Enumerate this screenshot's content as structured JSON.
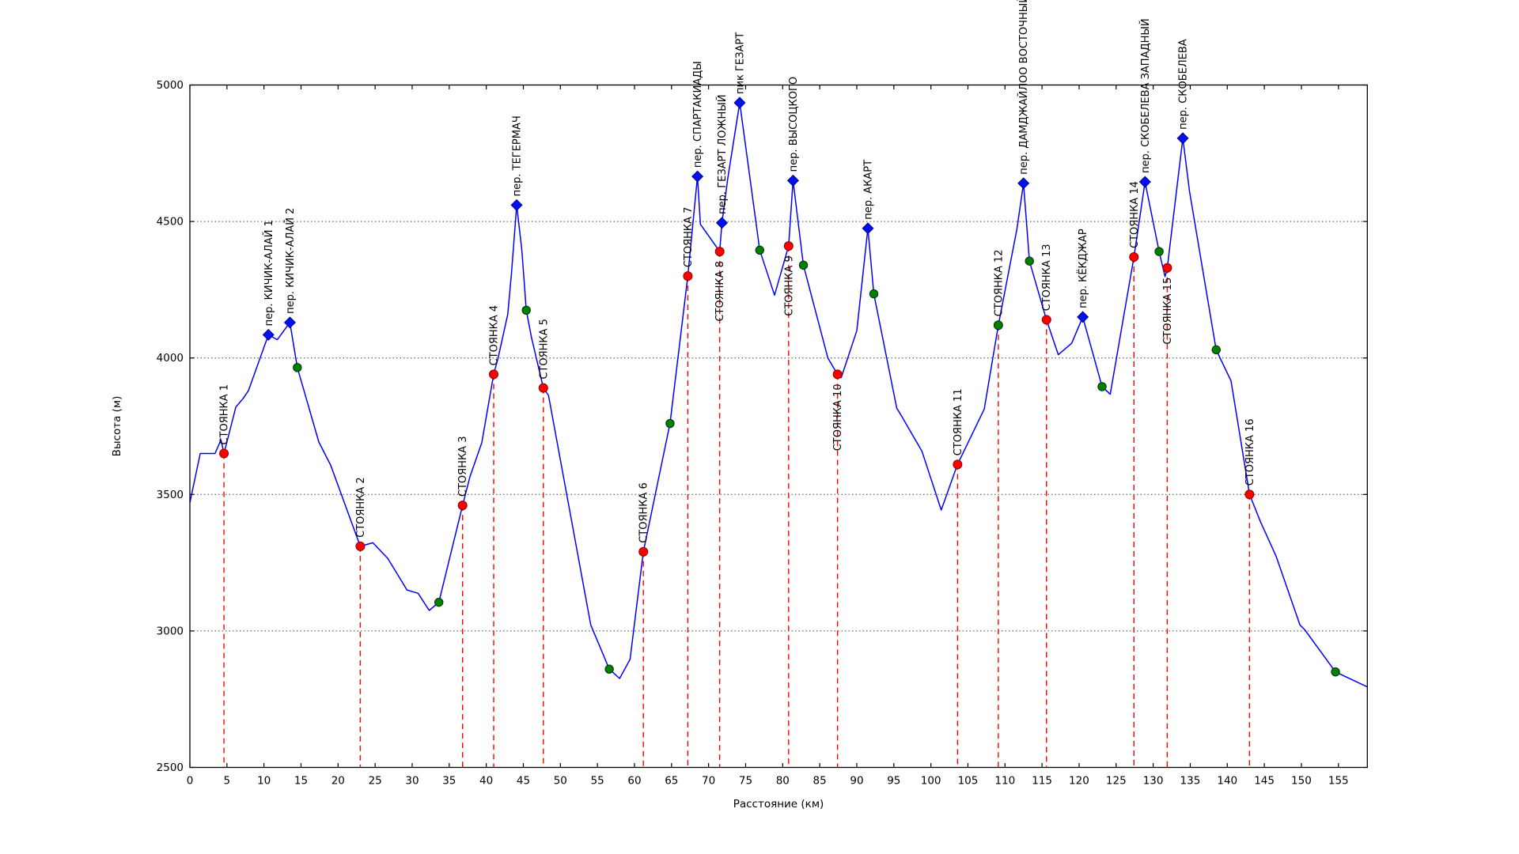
{
  "chart_data": {
    "type": "line",
    "title": "",
    "xlabel": "Расстояние (км)",
    "ylabel": "Высота (м)",
    "xlim": [
      0,
      158.9
    ],
    "ylim": [
      2500,
      5000
    ],
    "xticks": [
      0,
      5,
      10,
      15,
      20,
      25,
      30,
      35,
      40,
      45,
      50,
      55,
      60,
      65,
      70,
      75,
      80,
      85,
      90,
      95,
      100,
      105,
      110,
      115,
      120,
      125,
      130,
      135,
      140,
      145,
      150,
      155
    ],
    "yticks": [
      2500,
      3000,
      3500,
      4000,
      4500,
      5000
    ],
    "grid": "horizontal-dotted",
    "legend_position": "none",
    "colors": {
      "line": "#0000ff",
      "camp_marker": "#ff0000",
      "camp_marker_edge": "#8b0000",
      "waypoint_marker": "#008000",
      "waypoint_marker_edge": "#003300",
      "pass_marker": "#0010ee",
      "pass_marker_edge": "#000090",
      "camp_vline": "#ff0000",
      "grid_line": "#444444",
      "frame": "#000000"
    },
    "profile": [
      [
        0,
        3470
      ],
      [
        1.4,
        3650
      ],
      [
        3.4,
        3650
      ],
      [
        4.2,
        3700
      ],
      [
        4.6,
        3650
      ],
      [
        6.2,
        3820
      ],
      [
        7.2,
        3852
      ],
      [
        7.9,
        3880
      ],
      [
        10.6,
        4085
      ],
      [
        11.8,
        4067
      ],
      [
        13.5,
        4130
      ],
      [
        14.5,
        3965
      ],
      [
        17.4,
        3692
      ],
      [
        19.0,
        3607
      ],
      [
        23.0,
        3310
      ],
      [
        24.7,
        3323
      ],
      [
        26.7,
        3266
      ],
      [
        29.3,
        3150
      ],
      [
        30.8,
        3138
      ],
      [
        32.3,
        3075
      ],
      [
        33.6,
        3105
      ],
      [
        36.8,
        3460
      ],
      [
        37.8,
        3565
      ],
      [
        39.4,
        3690
      ],
      [
        41.0,
        3940
      ],
      [
        41.6,
        4000
      ],
      [
        42.9,
        4160
      ],
      [
        43.4,
        4310
      ],
      [
        44.1,
        4560
      ],
      [
        44.8,
        4395
      ],
      [
        45.4,
        4175
      ],
      [
        46.1,
        4075
      ],
      [
        47.7,
        3890
      ],
      [
        48.4,
        3863
      ],
      [
        54.1,
        3022
      ],
      [
        56.6,
        2860
      ],
      [
        58.0,
        2826
      ],
      [
        59.4,
        2896
      ],
      [
        61.2,
        3290
      ],
      [
        64.8,
        3760
      ],
      [
        67.2,
        4300
      ],
      [
        68.5,
        4665
      ],
      [
        68.9,
        4490
      ],
      [
        71.5,
        4390
      ],
      [
        71.8,
        4495
      ],
      [
        72.6,
        4660
      ],
      [
        74.2,
        4935
      ],
      [
        76.9,
        4395
      ],
      [
        78.9,
        4230
      ],
      [
        80.8,
        4410
      ],
      [
        81.4,
        4650
      ],
      [
        82.8,
        4340
      ],
      [
        86.1,
        4000
      ],
      [
        87.4,
        3940
      ],
      [
        87.9,
        3928
      ],
      [
        90.0,
        4100
      ],
      [
        91.5,
        4475
      ],
      [
        92.3,
        4235
      ],
      [
        95.4,
        3816
      ],
      [
        96.0,
        3789
      ],
      [
        98.8,
        3658
      ],
      [
        101.4,
        3443
      ],
      [
        103.6,
        3610
      ],
      [
        107.2,
        3813
      ],
      [
        109.1,
        4120
      ],
      [
        111.6,
        4471
      ],
      [
        112.5,
        4640
      ],
      [
        113.3,
        4355
      ],
      [
        115.6,
        4140
      ],
      [
        117.2,
        4012
      ],
      [
        119.0,
        4054
      ],
      [
        120.5,
        4150
      ],
      [
        123.1,
        3895
      ],
      [
        124.2,
        3867
      ],
      [
        127.4,
        4370
      ],
      [
        128.9,
        4645
      ],
      [
        130.8,
        4390
      ],
      [
        131.6,
        4298
      ],
      [
        131.9,
        4330
      ],
      [
        134.0,
        4805
      ],
      [
        134.9,
        4611
      ],
      [
        138.5,
        4030
      ],
      [
        140.5,
        3916
      ],
      [
        143.0,
        3500
      ],
      [
        144.5,
        3399
      ],
      [
        146.6,
        3273
      ],
      [
        149.8,
        3022
      ],
      [
        150.5,
        3003
      ],
      [
        154.6,
        2850
      ],
      [
        158.9,
        2795
      ]
    ],
    "camps": [
      {
        "label": "СТОЯНКА 1",
        "km": 4.6,
        "elev": 3650,
        "marker_color": "red",
        "label_side": "above"
      },
      {
        "label": "СТОЯНКА 2",
        "km": 23.0,
        "elev": 3310,
        "marker_color": "red",
        "label_side": "above"
      },
      {
        "label": "СТОЯНКА 3",
        "km": 36.8,
        "elev": 3460,
        "marker_color": "red",
        "label_side": "above"
      },
      {
        "label": "СТОЯНКА 4",
        "km": 41.0,
        "elev": 3940,
        "marker_color": "red",
        "label_side": "above"
      },
      {
        "label": "СТОЯНКА 5",
        "km": 47.7,
        "elev": 3890,
        "marker_color": "red",
        "label_side": "above"
      },
      {
        "label": "СТОЯНКА 6",
        "km": 61.2,
        "elev": 3290,
        "marker_color": "red",
        "label_side": "above"
      },
      {
        "label": "СТОЯНКА 7",
        "km": 67.2,
        "elev": 4300,
        "marker_color": "red",
        "label_side": "above"
      },
      {
        "label": "СТОЯНКА 8",
        "km": 71.5,
        "elev": 4390,
        "marker_color": "red",
        "label_side": "below"
      },
      {
        "label": "СТОЯНКА 9",
        "km": 80.8,
        "elev": 4410,
        "marker_color": "red",
        "label_side": "below"
      },
      {
        "label": "СТОЯНКА 10",
        "km": 87.4,
        "elev": 3940,
        "marker_color": "red",
        "label_side": "below"
      },
      {
        "label": "СТОЯНКА 11",
        "km": 103.6,
        "elev": 3610,
        "marker_color": "red",
        "label_side": "above"
      },
      {
        "label": "СТОЯНКА 12",
        "km": 109.1,
        "elev": 4120,
        "marker_color": "green",
        "label_side": "above"
      },
      {
        "label": "СТОЯНКА 13",
        "km": 115.6,
        "elev": 4140,
        "marker_color": "red",
        "label_side": "above"
      },
      {
        "label": "СТОЯНКА 14",
        "km": 127.4,
        "elev": 4370,
        "marker_color": "red",
        "label_side": "above"
      },
      {
        "label": "СТОЯНКА 15",
        "km": 131.9,
        "elev": 4330,
        "marker_color": "red",
        "label_side": "below"
      },
      {
        "label": "СТОЯНКА 16",
        "km": 143.0,
        "elev": 3500,
        "marker_color": "red",
        "label_side": "above"
      }
    ],
    "passes": [
      {
        "label": "пер. КИЧИК-АЛАЙ 1",
        "km": 10.6,
        "elev": 4085
      },
      {
        "label": "пер. КИЧИК-АЛАЙ 2",
        "km": 13.5,
        "elev": 4130
      },
      {
        "label": "пер. ТЕГЕРМАЧ",
        "km": 44.1,
        "elev": 4560
      },
      {
        "label": "пер. СПАРТАКИАДЫ",
        "km": 68.5,
        "elev": 4665
      },
      {
        "label": "пер. ГЕЗАРТ ЛОЖНЫЙ",
        "km": 71.8,
        "elev": 4495
      },
      {
        "label": "пик ГЕЗАРТ",
        "km": 74.2,
        "elev": 4935
      },
      {
        "label": "пер. ВЫСОЦКОГО",
        "km": 81.4,
        "elev": 4650
      },
      {
        "label": "пер. АКАРТ",
        "km": 91.5,
        "elev": 4475
      },
      {
        "label": "пер. ДАМДЖАЙЛОО ВОСТОЧНЫЙ",
        "km": 112.5,
        "elev": 4640
      },
      {
        "label": "пер. КЁКДЖАР",
        "km": 120.5,
        "elev": 4150
      },
      {
        "label": "пер. СКОБЕЛЕВА ЗАПАДНЫЙ",
        "km": 128.9,
        "elev": 4645
      },
      {
        "label": "пер. СКОБЕЛЕВА",
        "km": 134.0,
        "elev": 4805
      }
    ],
    "waypoints": [
      [
        14.5,
        3965
      ],
      [
        33.6,
        3105
      ],
      [
        45.4,
        4175
      ],
      [
        56.6,
        2860
      ],
      [
        64.8,
        3760
      ],
      [
        76.9,
        4395
      ],
      [
        82.8,
        4340
      ],
      [
        92.3,
        4235
      ],
      [
        113.3,
        4355
      ],
      [
        123.1,
        3895
      ],
      [
        130.8,
        4390
      ],
      [
        138.5,
        4030
      ],
      [
        154.6,
        2850
      ]
    ]
  }
}
